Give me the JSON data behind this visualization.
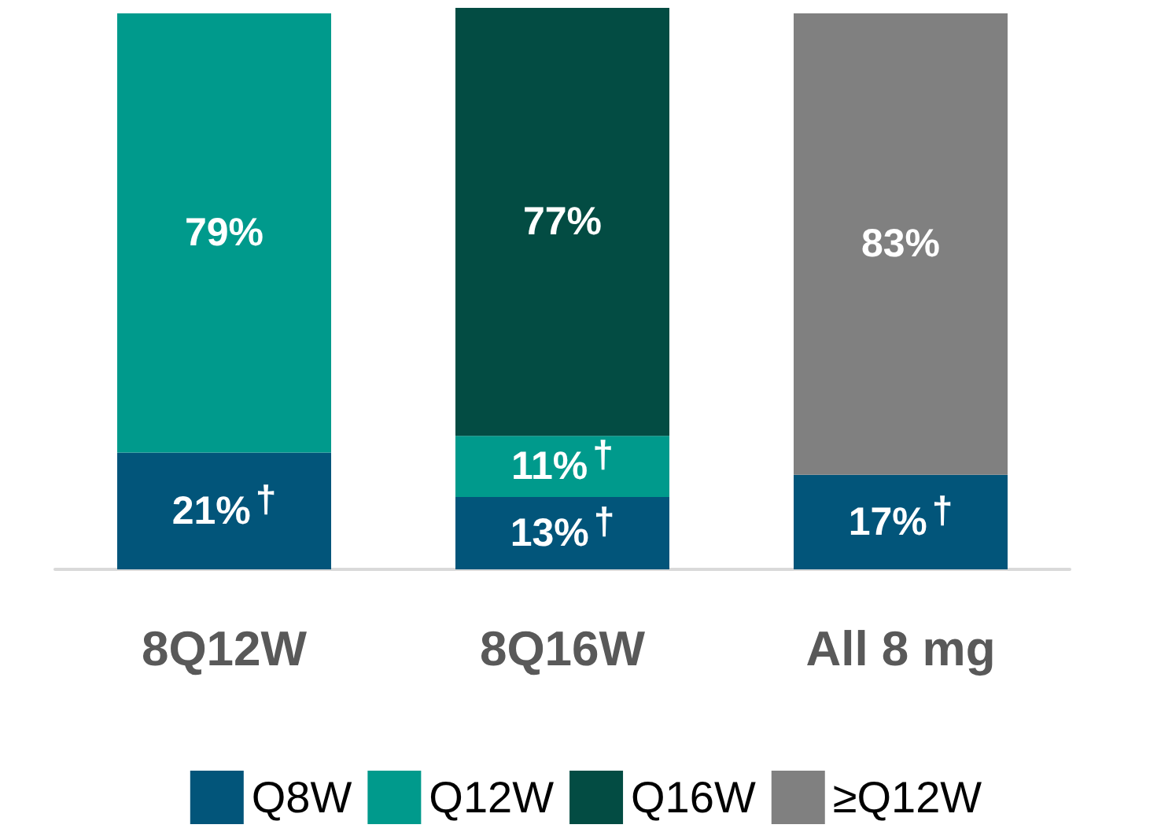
{
  "chart_data": {
    "type": "bar",
    "stacked": true,
    "categories": [
      "8Q12W",
      "8Q16W",
      "All 8 mg"
    ],
    "series": [
      {
        "name": "Q8W",
        "color": "#02557a",
        "values": [
          21,
          13,
          17
        ],
        "value_labels": [
          "21%†",
          "13%†",
          "17%†"
        ]
      },
      {
        "name": "Q12W",
        "color": "#009a8c",
        "values": [
          79,
          11,
          null
        ],
        "value_labels": [
          "79%",
          "11%†",
          null
        ]
      },
      {
        "name": "Q16W",
        "color": "#034c43",
        "values": [
          null,
          77,
          null
        ],
        "value_labels": [
          null,
          "77%",
          null
        ]
      },
      {
        "name": "≥Q12W",
        "color": "#808080",
        "values": [
          null,
          null,
          83
        ],
        "value_labels": [
          null,
          null,
          "83%"
        ]
      }
    ],
    "legend": "bottom"
  }
}
